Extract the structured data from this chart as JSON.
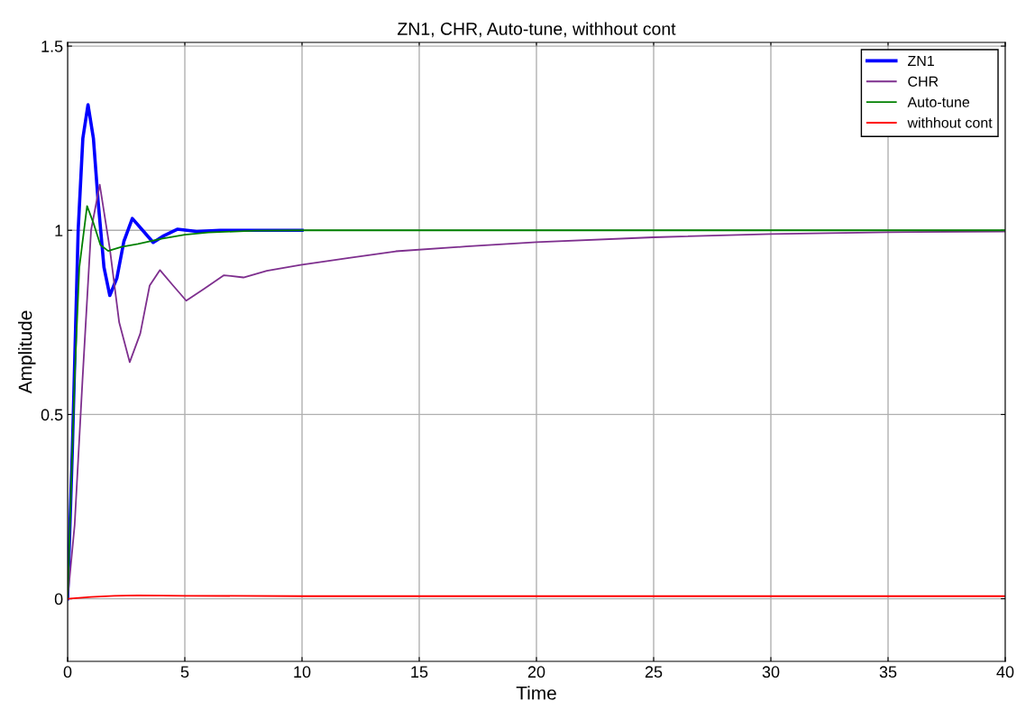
{
  "chart_data": {
    "type": "line",
    "title": "ZN1, CHR, Auto-tune, withhout cont",
    "xlabel": "Time",
    "ylabel": "Amplitude",
    "xlim": [
      0,
      40
    ],
    "xticks": [
      0,
      5,
      10,
      15,
      20,
      25,
      30,
      35,
      40
    ],
    "ylim": [
      -0.17,
      1.51
    ],
    "yticks": [
      0,
      0.5,
      1,
      1.5
    ],
    "grid": true,
    "legend": "top right",
    "marker": "none",
    "line_style": "solid",
    "series": [
      {
        "name": "ZN1",
        "color": "#0000ff",
        "x": [
          0,
          0.2,
          0.45,
          0.65,
          0.87,
          1.1,
          1.3,
          1.55,
          1.8,
          2.1,
          2.4,
          2.76,
          3.2,
          3.65,
          4.1,
          4.68,
          5.5,
          6.5,
          8,
          10
        ],
        "values": [
          0,
          0.4,
          1.0,
          1.25,
          1.341,
          1.25,
          1.08,
          0.9,
          0.823,
          0.87,
          0.97,
          1.032,
          1.0,
          0.967,
          0.985,
          1.003,
          0.997,
          1.0,
          1.0,
          1.0
        ]
      },
      {
        "name": "CHR",
        "color": "#7e2f8e",
        "x": [
          0,
          0.3,
          0.64,
          1.0,
          1.37,
          1.8,
          2.2,
          2.65,
          3.1,
          3.5,
          3.94,
          4.5,
          5.06,
          5.8,
          6.67,
          7.5,
          8.5,
          9.94,
          12,
          14,
          17,
          20,
          25,
          30,
          35,
          40
        ],
        "values": [
          0,
          0.2,
          0.6,
          1.0,
          1.124,
          0.95,
          0.75,
          0.642,
          0.72,
          0.85,
          0.892,
          0.85,
          0.809,
          0.84,
          0.878,
          0.872,
          0.89,
          0.906,
          0.925,
          0.943,
          0.956,
          0.968,
          0.981,
          0.99,
          0.995,
          0.997
        ]
      },
      {
        "name": "Auto-tune",
        "color": "#008000",
        "x": [
          0,
          0.15,
          0.3,
          0.5,
          0.83,
          1.1,
          1.4,
          1.73,
          2.3,
          3,
          4,
          5,
          6,
          8,
          10,
          40
        ],
        "values": [
          0,
          0.3,
          0.6,
          0.9,
          1.066,
          1.02,
          0.96,
          0.944,
          0.955,
          0.963,
          0.977,
          0.988,
          0.994,
          0.999,
          1.0,
          1.0
        ]
      },
      {
        "name": "withhout cont",
        "color": "#ff0000",
        "x": [
          0,
          1,
          2,
          3,
          5,
          10,
          40
        ],
        "values": [
          0,
          0.005,
          0.008,
          0.009,
          0.008,
          0.007,
          0.007
        ]
      }
    ]
  }
}
